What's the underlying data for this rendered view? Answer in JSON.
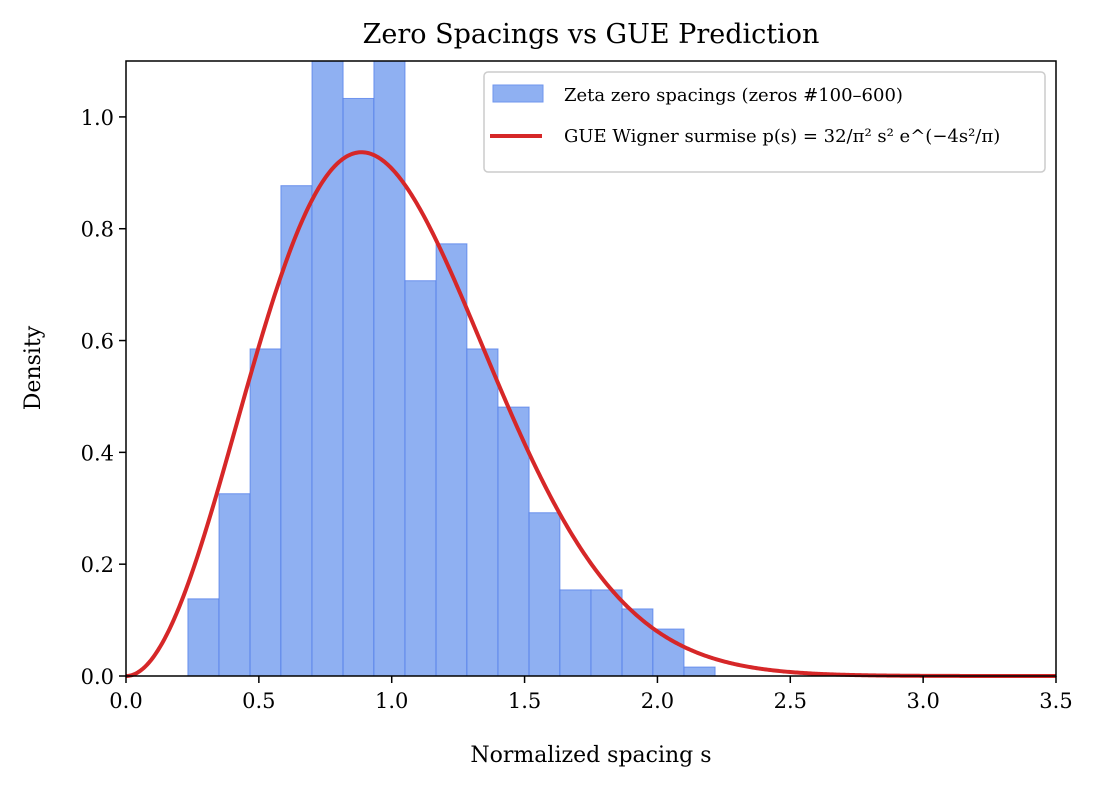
{
  "chart_data": {
    "type": "bar",
    "title": "Zero Spacings vs GUE Prediction",
    "xlabel": "Normalized spacing s",
    "ylabel": "Density",
    "xlim": [
      0,
      3.5
    ],
    "ylim": [
      0,
      1.1
    ],
    "grid": false,
    "legend_position": "top-right",
    "x_ticks": [
      "0.0",
      "0.5",
      "1.0",
      "1.5",
      "2.0",
      "2.5",
      "3.0",
      "3.5"
    ],
    "y_ticks": [
      "0.0",
      "0.2",
      "0.4",
      "0.6",
      "0.8",
      "1.0"
    ],
    "histogram": {
      "name": "Zeta zero spacings (zeros #100–600)",
      "color": "#8fb0f2",
      "edge_color": "#4a78e8",
      "bin_edges": [
        0.233,
        0.35,
        0.467,
        0.583,
        0.7,
        0.817,
        0.933,
        1.05,
        1.167,
        1.283,
        1.4,
        1.517,
        1.633,
        1.75,
        1.867,
        1.983,
        2.1,
        2.217
      ],
      "values": [
        0.138,
        0.326,
        0.585,
        0.877,
        1.13,
        1.033,
        1.13,
        0.707,
        0.773,
        0.585,
        0.481,
        0.292,
        0.154,
        0.154,
        0.12,
        0.084,
        0.016
      ]
    },
    "curve": {
      "name": "GUE Wigner surmise p(s) = 32/π² s² e^(−4s²/π)",
      "color": "#d62728",
      "formula": "p(s) = 32/π² · s² · exp(−4s²/π)"
    }
  }
}
